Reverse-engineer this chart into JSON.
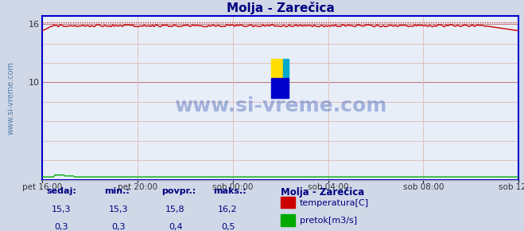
{
  "title": "Molja - Zarečica",
  "bg_color": "#d0d8e8",
  "plot_bg_color": "#e8eef8",
  "title_color": "#000080",
  "grid_color_major": "#c08080",
  "grid_color_minor": "#e0c0c0",
  "temp_color": "#cc0000",
  "flow_color": "#00aa00",
  "border_color": "#0000cc",
  "watermark": "www.si-vreme.com",
  "watermark_color": "#2244aa",
  "x_tick_labels": [
    "pet 16:00",
    "pet 20:00",
    "sob 00:00",
    "sob 04:00",
    "sob 08:00",
    "sob 12:00"
  ],
  "x_tick_positions": [
    0.0,
    0.2,
    0.4,
    0.6,
    0.8,
    1.0
  ],
  "y_ticks": [
    16,
    10
  ],
  "ylim": [
    0,
    16.8
  ],
  "temp_mean": 15.8,
  "temp_min": 15.3,
  "temp_max": 16.2,
  "flow_mean": 0.4,
  "flow_min": 0.3,
  "flow_max": 0.5,
  "sedaj_temp": 15.3,
  "sedaj_flow": 0.3,
  "legend_title": "Molja - Zarečica",
  "label_temp": "temperatura[C]",
  "label_flow": "pretok[m3/s]",
  "footer_bg": "#ffffff",
  "footer_text_color": "#000080",
  "footer_label_color": "#000080"
}
